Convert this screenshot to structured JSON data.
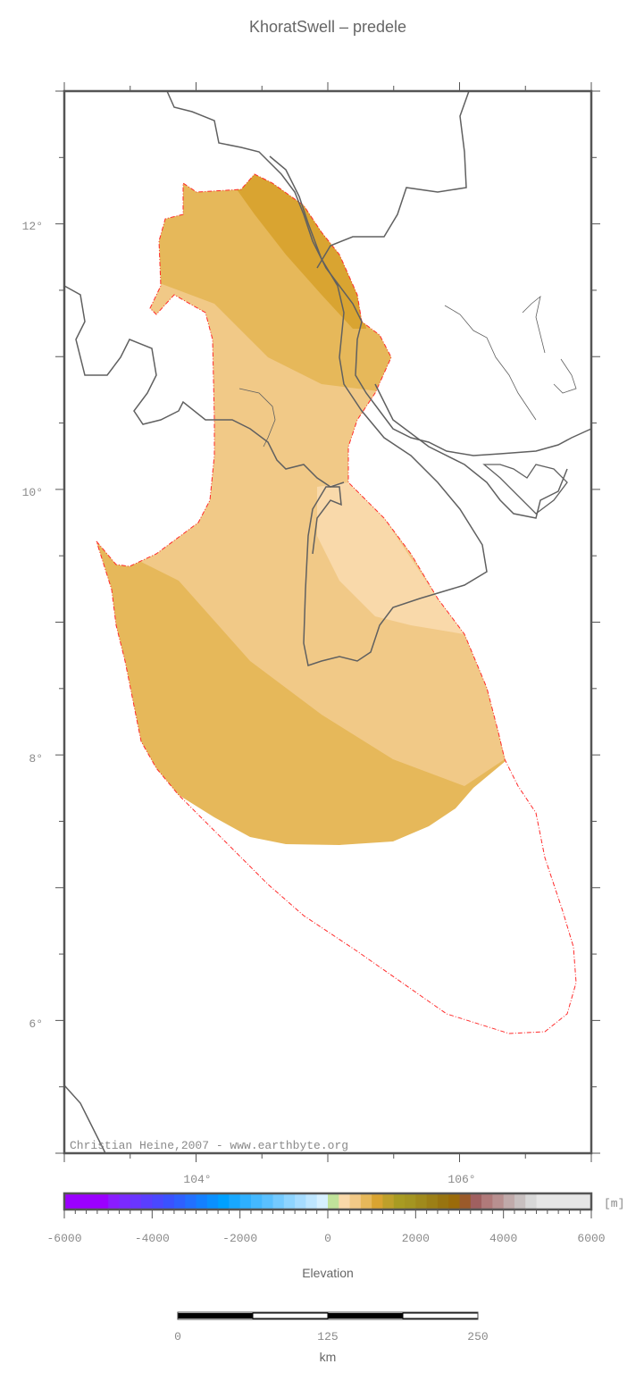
{
  "title": "KhoratSwell – predele",
  "credit": "Christian Heine,2007 - www.earthbyte.org",
  "map": {
    "lon_range": [
      103,
      107
    ],
    "lat_range": [
      5,
      13
    ],
    "lon_labels": [
      "104°",
      "106°"
    ],
    "lat_labels": [
      "12°",
      "10°",
      "8°",
      "6°"
    ],
    "fill_colors": {
      "dark": "#d9a431",
      "mid": "#e6b85a",
      "light": "#f1c987",
      "lightest": "#f9d9aa"
    },
    "outline_color": "#ff2a2a",
    "coast_color": "#606060"
  },
  "colorbar": {
    "label": "Elevation",
    "unit": "[m]",
    "range": [
      -6000,
      6000
    ],
    "tick_labels": [
      "-6000",
      "-4000",
      "-2000",
      "0",
      "2000",
      "4000",
      "6000"
    ],
    "colors": [
      "#9b00ff",
      "#8a1cff",
      "#7a2aff",
      "#6a35ff",
      "#5a3eff",
      "#4a48ff",
      "#3a52ff",
      "#2e60ff",
      "#2270ff",
      "#1480ff",
      "#0a90ff",
      "#00a0ff",
      "#18a8ff",
      "#2eb0ff",
      "#44b8ff",
      "#5ac0ff",
      "#74caff",
      "#8ed4ff",
      "#a6dcff",
      "#bee6ff",
      "#d6f0ff",
      "#c0e29a",
      "#f9d9aa",
      "#f1c987",
      "#e6b85a",
      "#d9a431",
      "#bea02a",
      "#a89b22",
      "#a49521",
      "#a08a1c",
      "#9c7f16",
      "#987410",
      "#9a6b0a",
      "#9a5a2a",
      "#a06060",
      "#b07a7a",
      "#b89090",
      "#c0aaaa",
      "#c8c0c0",
      "#d8d8d8",
      "#e6e6e6"
    ]
  },
  "scalebar": {
    "labels": [
      "0",
      "125",
      "250"
    ],
    "unit": "km"
  }
}
